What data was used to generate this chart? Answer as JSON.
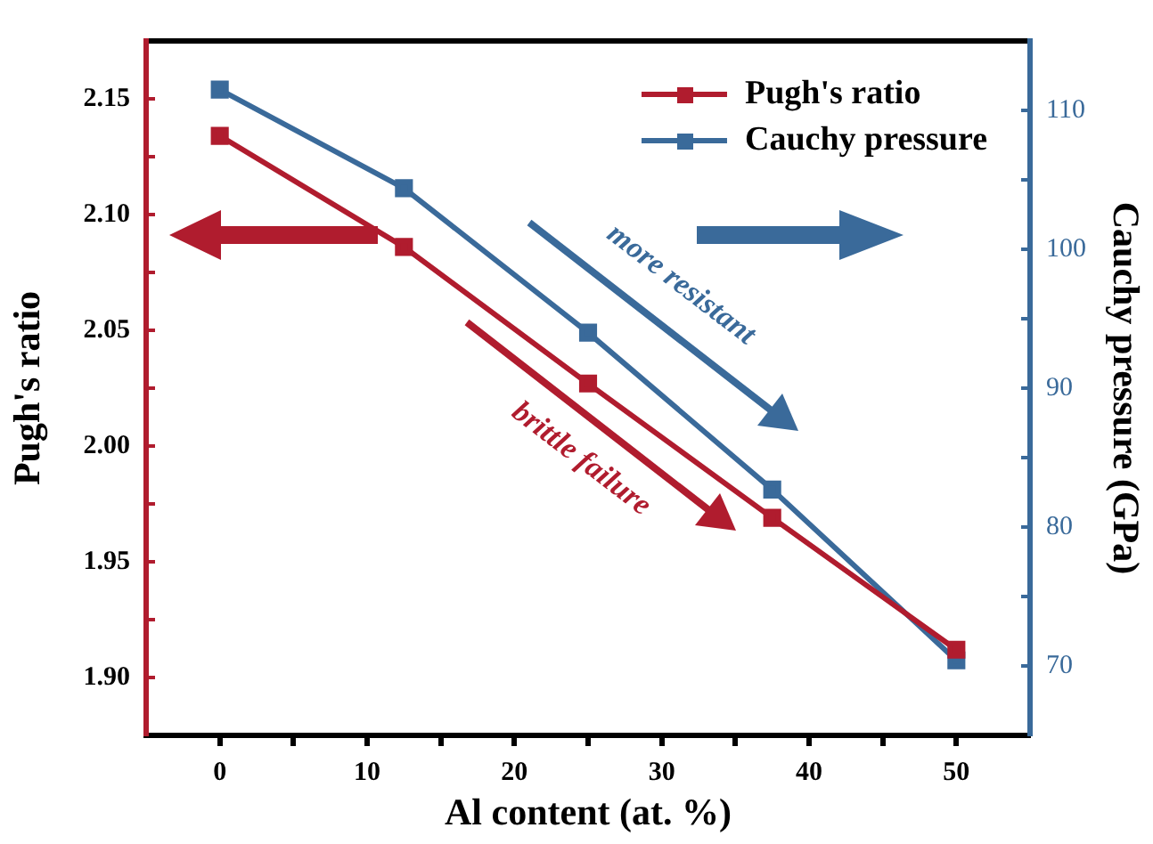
{
  "chart_data": {
    "type": "line",
    "xlabel": "Al content (at. %)",
    "ylabel": "Pugh's ratio",
    "y2label": "Cauchy pressure (GPa)",
    "x": [
      0,
      12.5,
      25,
      37.5,
      50
    ],
    "xlim": [
      -5,
      55
    ],
    "xticks": [
      0,
      {
        "value": 5,
        "label": null
      },
      10,
      {
        "value": 15,
        "label": null
      },
      20,
      {
        "value": 25,
        "label": null
      },
      30,
      {
        "value": 35,
        "label": null
      },
      40,
      {
        "value": 45,
        "label": null
      },
      50
    ],
    "ylim": [
      1.875,
      2.175
    ],
    "yticks": [
      {
        "value": 1.9,
        "label": "1.90"
      },
      {
        "value": 1.925,
        "label": null
      },
      1.95,
      {
        "value": 1.975,
        "label": null
      },
      {
        "value": 2.0,
        "label": "2.00"
      },
      {
        "value": 2.025,
        "label": null
      },
      2.05,
      {
        "value": 2.075,
        "label": null
      },
      {
        "value": 2.1,
        "label": "2.10"
      },
      {
        "value": 2.125,
        "label": null
      },
      2.15
    ],
    "y2lim": [
      65,
      115
    ],
    "y2ticks": [
      70,
      {
        "value": 75,
        "label": null
      },
      80,
      {
        "value": 85,
        "label": null
      },
      90,
      {
        "value": 95,
        "label": null
      },
      100,
      {
        "value": 105,
        "label": null
      },
      110
    ],
    "series": [
      {
        "name": "Pugh's ratio",
        "color": "#b01c2e",
        "values": [
          2.134,
          2.086,
          2.027,
          1.969,
          1.912
        ]
      },
      {
        "name": "Cauchy pressure",
        "color": "#3a6a9a",
        "axis": "y2",
        "values": [
          111.5,
          104.4,
          94.0,
          82.7,
          70.4
        ]
      }
    ],
    "annotations": [
      "more resistant",
      "brittle failure"
    ],
    "legend": "top right",
    "marker": "square",
    "line_style": "solid",
    "grid": false
  }
}
